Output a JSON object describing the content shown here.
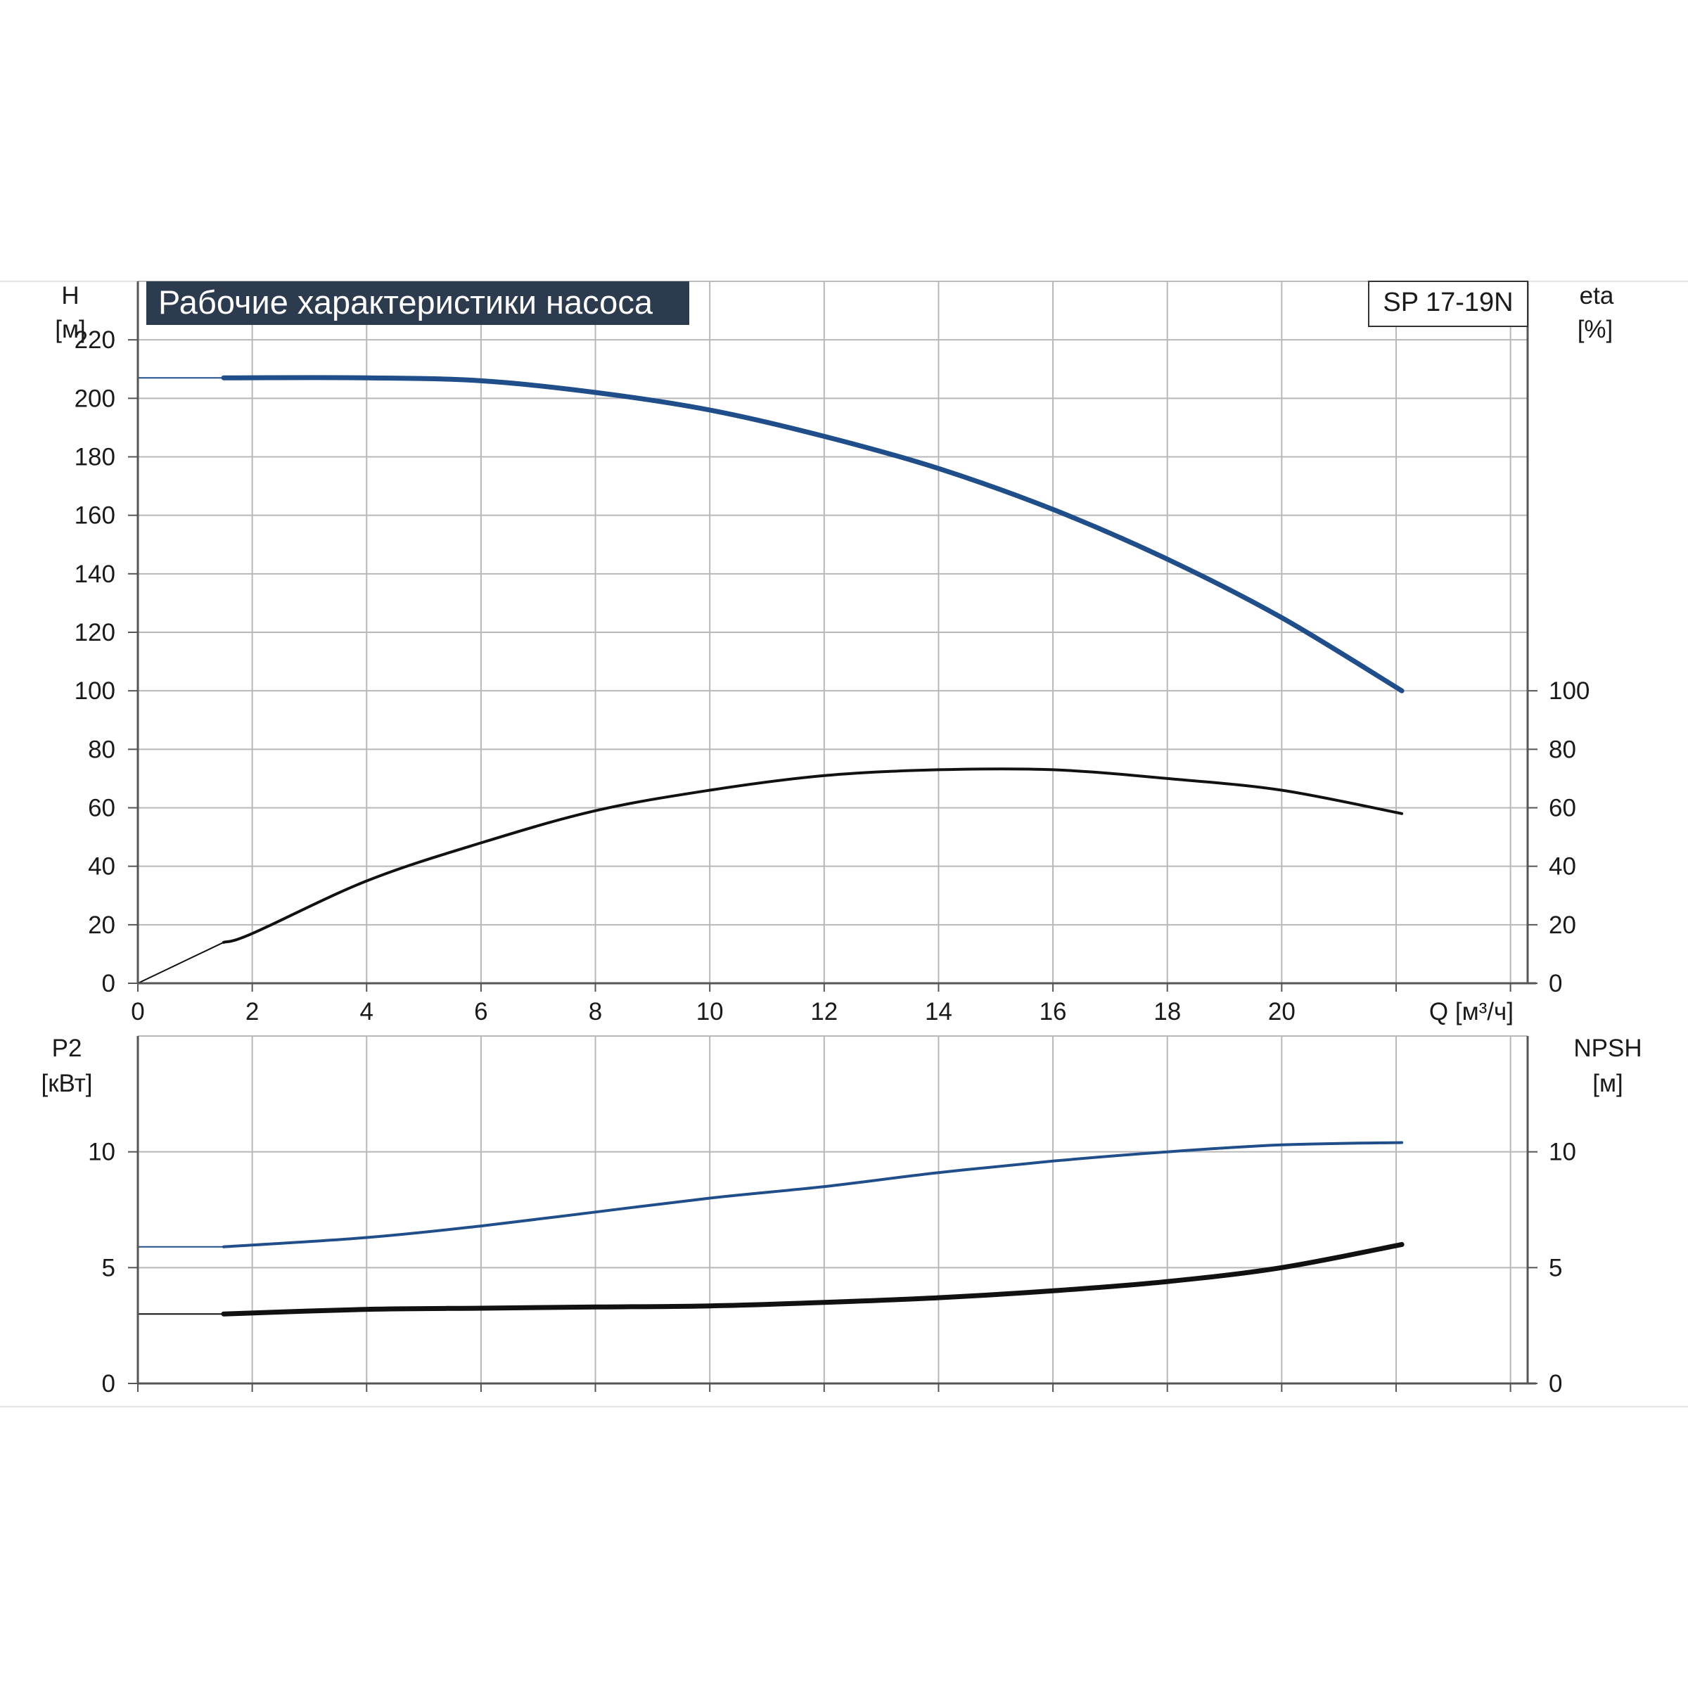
{
  "title": "Рабочие характеристики насоса",
  "model": "SP 17-19N",
  "colors": {
    "blue_curve": "#1f4e8a",
    "black_curve": "#111111",
    "grid": "#b8b8b8",
    "axis": "#555555",
    "title_bg": "#2d3b4e"
  },
  "chart_data": [
    {
      "type": "line",
      "panel": "upper",
      "xlabel": "Q [м³/ч]",
      "ylabel_left": "H",
      "ylabel_left_unit": "[м]",
      "ylabel_right": "eta",
      "ylabel_right_unit": "[%]",
      "xlim": [
        0,
        24.3
      ],
      "ylim_left": [
        0,
        240
      ],
      "ylim_right": [
        0,
        240
      ],
      "x_ticks": [
        "0",
        "2",
        "4",
        "6",
        "8",
        "10",
        "12",
        "14",
        "16",
        "18",
        "20"
      ],
      "y_ticks_left": [
        "0",
        "20",
        "40",
        "60",
        "80",
        "100",
        "120",
        "140",
        "160",
        "180",
        "200",
        "220"
      ],
      "y_ticks_right": [
        "0",
        "20",
        "40",
        "60",
        "80",
        "100"
      ],
      "grid": true,
      "series": [
        {
          "key": "H",
          "axis": "left",
          "x": [
            0,
            1.5,
            4,
            6,
            8,
            10,
            12,
            14,
            16,
            18,
            20,
            22.1
          ],
          "y": [
            207,
            207,
            207,
            206,
            202,
            196,
            187,
            176,
            162,
            145,
            125,
            100
          ],
          "dashed_until_x": 1.5
        },
        {
          "key": "eta",
          "axis": "right",
          "x": [
            0,
            1.5,
            2,
            4,
            6,
            8,
            10,
            12,
            14,
            16,
            18,
            20,
            22.1
          ],
          "y": [
            0,
            14,
            17,
            35,
            48,
            59,
            66,
            71,
            73,
            73,
            70,
            66,
            58
          ],
          "dashed_until_x": 1.5
        }
      ]
    },
    {
      "type": "line",
      "panel": "lower",
      "ylabel_left": "P2",
      "ylabel_left_unit": "[кВт]",
      "ylabel_right": "NPSH",
      "ylabel_right_unit": "[м]",
      "xlim": [
        0,
        24.3
      ],
      "ylim_left": [
        0,
        15
      ],
      "ylim_right": [
        0,
        15
      ],
      "y_ticks_left": [
        "0",
        "5",
        "10"
      ],
      "y_ticks_right": [
        "0",
        "5",
        "10"
      ],
      "grid": true,
      "series": [
        {
          "key": "P2",
          "axis": "left",
          "x": [
            0,
            1.5,
            4,
            6,
            8,
            10,
            12,
            14,
            16,
            18,
            20,
            22.1
          ],
          "y": [
            5.9,
            5.9,
            6.3,
            6.8,
            7.4,
            8.0,
            8.5,
            9.1,
            9.6,
            10.0,
            10.3,
            10.4
          ],
          "dashed_until_x": 1.5
        },
        {
          "key": "NPSH",
          "axis": "right",
          "x": [
            0,
            1.5,
            4,
            6,
            8,
            10,
            12,
            14,
            16,
            18,
            20,
            22.1
          ],
          "y": [
            3.0,
            3.0,
            3.2,
            3.25,
            3.3,
            3.35,
            3.5,
            3.7,
            4.0,
            4.4,
            5.0,
            6.0
          ],
          "dashed_until_x": 1.5
        }
      ]
    }
  ]
}
